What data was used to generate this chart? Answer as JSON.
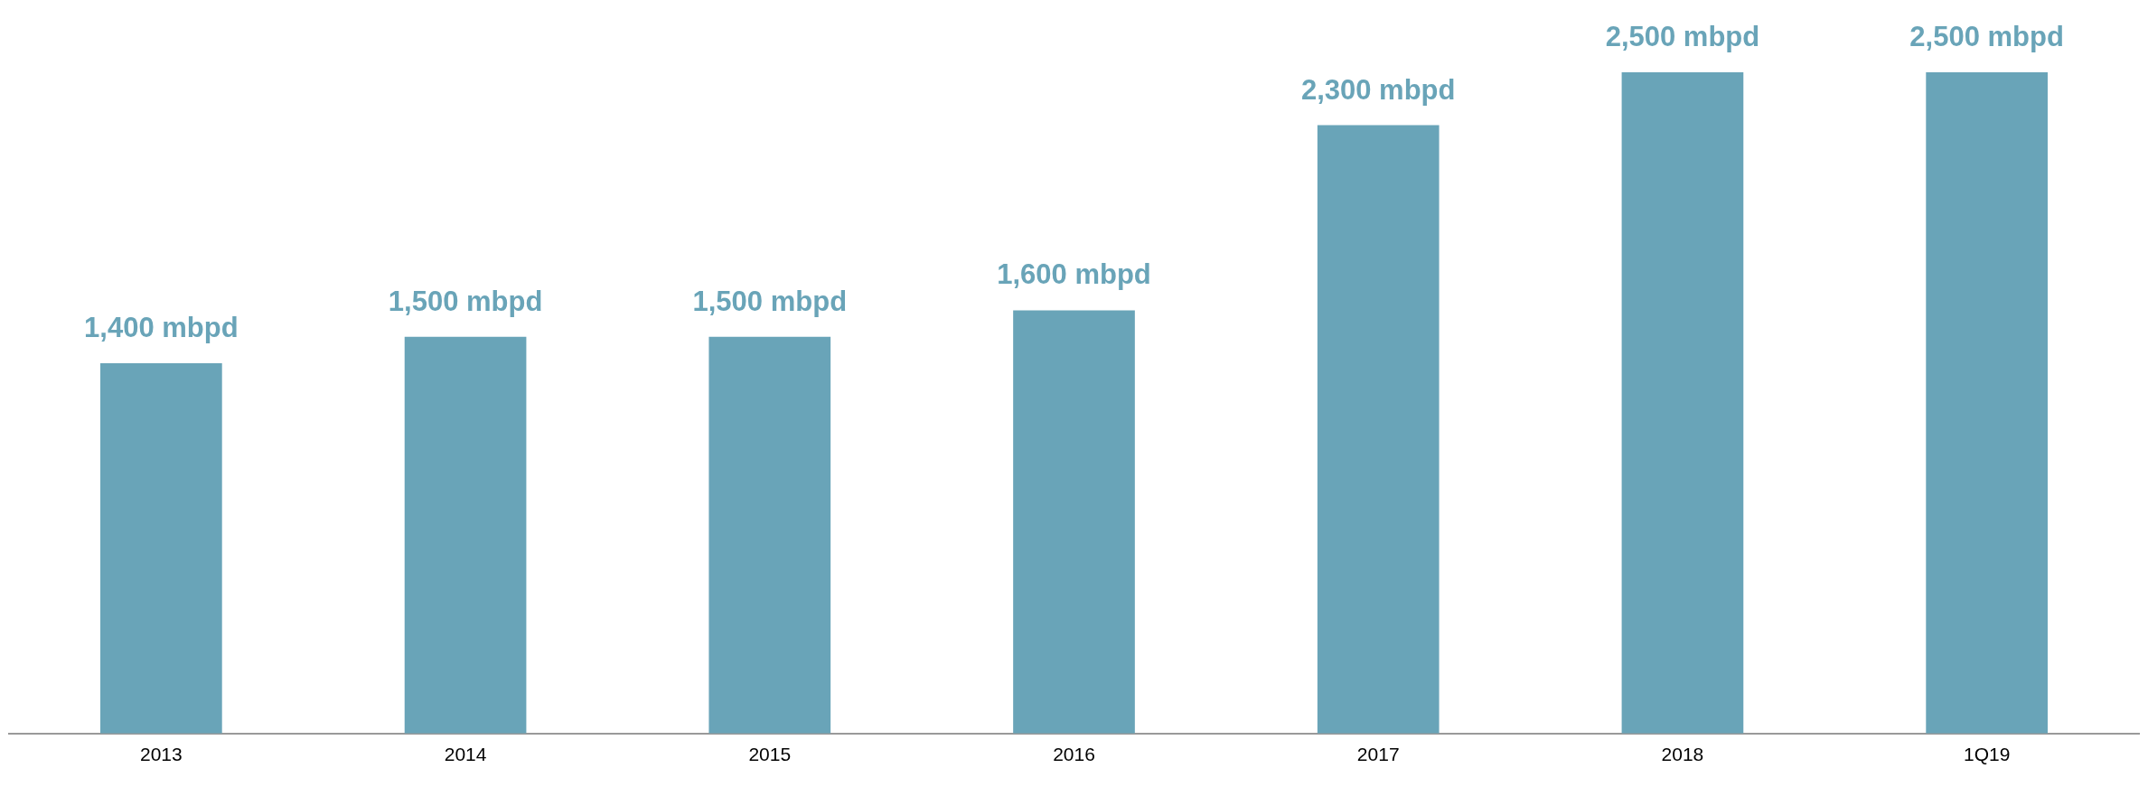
{
  "chart_data": {
    "type": "bar",
    "categories": [
      "2013",
      "2014",
      "2015",
      "2016",
      "2017",
      "2018",
      "1Q19"
    ],
    "values": [
      1400,
      1500,
      1500,
      1600,
      2300,
      2500,
      2500
    ],
    "value_labels": [
      "1,400 mbpd",
      "1,500 mbpd",
      "1,500 mbpd",
      "1,600 mbpd",
      "2,300 mbpd",
      "2,500 mbpd",
      "2,500 mbpd"
    ],
    "color": "#69a4b8",
    "grid": false,
    "legend": false
  }
}
